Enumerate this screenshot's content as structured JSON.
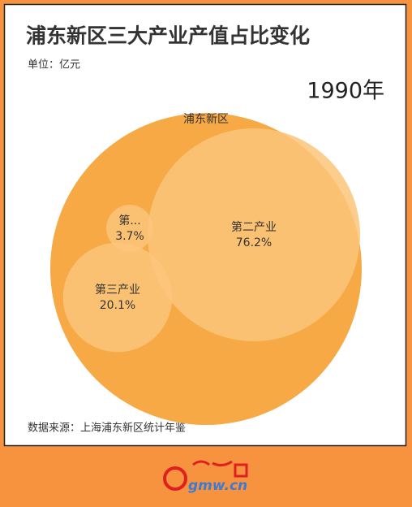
{
  "chart_data": {
    "type": "pack",
    "title": "浦东新区三大产业产值占比变化",
    "subtitle": "单位：亿元",
    "year": "1990年",
    "root": "浦东新区",
    "categories": [
      "第...",
      "第二产业",
      "第三产业"
    ],
    "values": [
      3.7,
      76.2,
      20.1
    ],
    "value_labels": [
      "3.7%",
      "76.2%",
      "20.1%"
    ],
    "root_color": "#f6a945",
    "color": "#fbc67a",
    "source": "数据来源：上海浦东新区统计年鉴",
    "logo": "gmw.cn"
  }
}
